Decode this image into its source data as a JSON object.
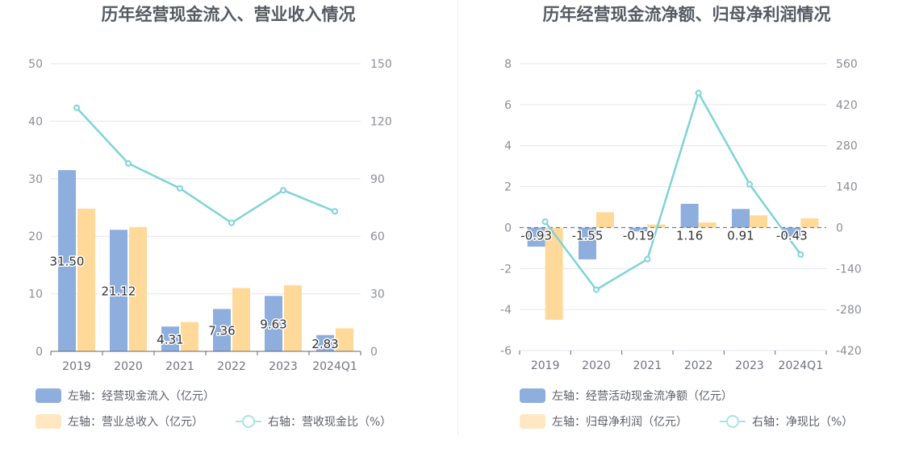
{
  "colors": {
    "left_bar": "#8eaedd",
    "right_bar": "#ffd999",
    "line": "#7fd3d8",
    "legend_left_bar": "#8eaedd",
    "legend_right_bar": "#ffe7c2",
    "legend_line": "#a9e3e6",
    "grid": "#e3e6ef"
  },
  "chart_data": [
    {
      "type": "bar",
      "title": "历年经营现金流入、营业收入情况",
      "categories": [
        "2019",
        "2020",
        "2021",
        "2022",
        "2023",
        "2024Q1"
      ],
      "left_axis": {
        "ylim": [
          0,
          50
        ],
        "ticks": [
          "0",
          "10",
          "20",
          "30",
          "40",
          "50"
        ]
      },
      "right_axis": {
        "ylim": [
          0,
          150
        ],
        "ticks": [
          "0",
          "30",
          "60",
          "90",
          "120",
          "150"
        ]
      },
      "series": [
        {
          "name": "左轴：经营现金流入（亿元）",
          "kind": "bar",
          "axis": "left",
          "values": [
            31.5,
            21.12,
            4.31,
            7.36,
            9.63,
            2.83
          ],
          "labels": [
            "31.50",
            "21.12",
            "4.31",
            "7.36",
            "9.63",
            "2.83"
          ]
        },
        {
          "name": "左轴：营业总收入（亿元）",
          "kind": "bar",
          "axis": "left",
          "values": [
            24.8,
            21.6,
            5.1,
            11.0,
            11.5,
            4.0
          ]
        },
        {
          "name": "右轴：营收现金比（%）",
          "kind": "line",
          "axis": "right",
          "values": [
            127,
            98,
            85,
            67,
            84,
            73
          ]
        }
      ],
      "legend_placement": "bottom",
      "grid": true
    },
    {
      "type": "bar",
      "title": "历年经营现金流净额、归母净利润情况",
      "categories": [
        "2019",
        "2020",
        "2021",
        "2022",
        "2023",
        "2024Q1"
      ],
      "left_axis": {
        "ylim": [
          -6,
          8
        ],
        "ticks": [
          "-6",
          "-4",
          "-2",
          "0",
          "2",
          "4",
          "6",
          "8"
        ]
      },
      "right_axis": {
        "ylim": [
          -420,
          560
        ],
        "ticks": [
          "-420",
          "-280",
          "-140",
          "0",
          "140",
          "280",
          "420",
          "560"
        ]
      },
      "series": [
        {
          "name": "左轴：经营活动现金流净额（亿元）",
          "kind": "bar",
          "axis": "left",
          "values": [
            -0.93,
            -1.55,
            -0.19,
            1.16,
            0.91,
            -0.43
          ],
          "labels": [
            "-0.93",
            "-1.55",
            "-0.19",
            "1.16",
            "0.91",
            "-0.43"
          ]
        },
        {
          "name": "左轴：归母净利润（亿元）",
          "kind": "bar",
          "axis": "left",
          "values": [
            -4.5,
            0.75,
            0.15,
            0.25,
            0.6,
            0.45
          ]
        },
        {
          "name": "右轴：净现比（%）",
          "kind": "line",
          "axis": "right",
          "values": [
            20,
            -212,
            -108,
            460,
            148,
            -92
          ]
        }
      ],
      "legend_placement": "bottom",
      "grid": true
    }
  ]
}
